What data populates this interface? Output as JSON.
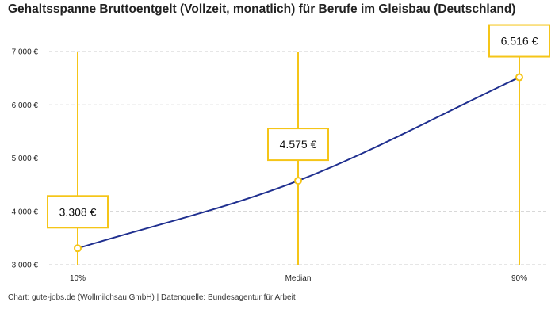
{
  "chart_data": {
    "type": "line",
    "title": "Gehaltsspanne Bruttoentgelt (Vollzeit, monatlich) für Berufe im Gleisbau (Deutschland)",
    "categories": [
      "10%",
      "Median",
      "90%"
    ],
    "values": [
      3308,
      4575,
      6516
    ],
    "value_labels": [
      "3.308 €",
      "4.575 €",
      "6.516 €"
    ],
    "ylim": [
      3000,
      7000
    ],
    "yticks": [
      3000,
      4000,
      5000,
      6000,
      7000
    ],
    "ytick_labels": [
      "3.000 €",
      "4.000 €",
      "5.000 €",
      "6.000 €",
      "7.000 €"
    ],
    "grid": true,
    "colors": {
      "line": "#1f2f8f",
      "accent": "#f5c518",
      "grid": "#cccccc"
    }
  },
  "footer": "Chart: gute-jobs.de (Wollmilchsau GmbH) | Datenquelle: Bundesagentur für Arbeit"
}
